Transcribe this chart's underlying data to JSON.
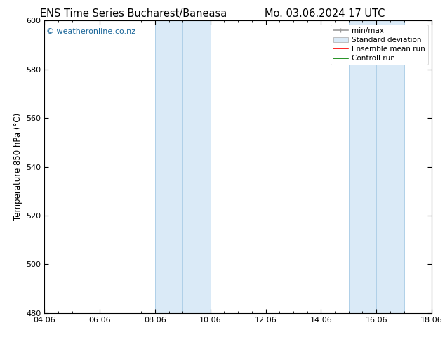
{
  "title_left": "ENS Time Series Bucharest/Baneasa",
  "title_right": "Mo. 03.06.2024 17 UTC",
  "ylabel": "Temperature 850 hPa (°C)",
  "xlim_num": [
    0,
    14
  ],
  "ylim": [
    480,
    600
  ],
  "yticks": [
    480,
    500,
    520,
    540,
    560,
    580,
    600
  ],
  "xtick_positions": [
    0,
    2,
    4,
    6,
    8,
    10,
    12,
    14
  ],
  "xtick_labels": [
    "04.06",
    "06.06",
    "08.06",
    "10.06",
    "12.06",
    "14.06",
    "16.06",
    "18.06"
  ],
  "shaded_bands": [
    {
      "x_start": 4,
      "x_end": 6,
      "color": "#daeaf7"
    },
    {
      "x_start": 11,
      "x_end": 13,
      "color": "#daeaf7"
    }
  ],
  "band_border_lines": [
    {
      "x": 4,
      "color": "#afd0e8",
      "lw": 0.7
    },
    {
      "x": 5,
      "color": "#afd0e8",
      "lw": 0.7
    },
    {
      "x": 6,
      "color": "#afd0e8",
      "lw": 0.7
    },
    {
      "x": 11,
      "color": "#afd0e8",
      "lw": 0.7
    },
    {
      "x": 12,
      "color": "#afd0e8",
      "lw": 0.7
    },
    {
      "x": 13,
      "color": "#afd0e8",
      "lw": 0.7
    }
  ],
  "watermark_text": "© weatheronline.co.nz",
  "watermark_color": "#1a6699",
  "watermark_fontsize": 8,
  "legend_entries": [
    {
      "label": "min/max",
      "color": "#aaaaaa",
      "type": "line_with_caps"
    },
    {
      "label": "Standard deviation",
      "color": "#daeaf7",
      "type": "bar"
    },
    {
      "label": "Ensemble mean run",
      "color": "red",
      "type": "line"
    },
    {
      "label": "Controll run",
      "color": "green",
      "type": "line"
    }
  ],
  "title_fontsize": 10.5,
  "axis_label_fontsize": 8.5,
  "tick_fontsize": 8,
  "bg_color": "#ffffff",
  "plot_bg_color": "#ffffff",
  "legend_fontsize": 7.5,
  "legend_handlelength": 2.0
}
